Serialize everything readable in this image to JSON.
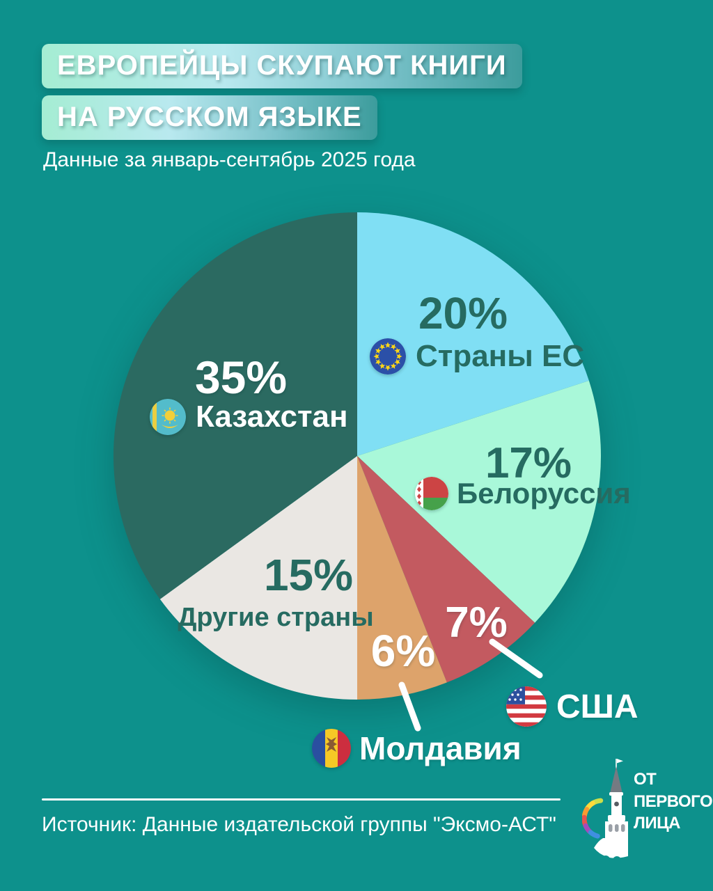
{
  "page": {
    "background_color": "#0d918c"
  },
  "header": {
    "title_line1": "ЕВРОПЕЙЦЫ СКУПАЮТ КНИГИ",
    "title_line2": "НА РУССКОМ ЯЗЫКЕ",
    "subtitle": "Данные за январь-сентябрь 2025 года"
  },
  "footer": {
    "source": "Источник: Данные издательской группы \"Эксмо-АСТ\"",
    "logo": {
      "line1": "ОТ",
      "line2": "ПЕРВОГО",
      "line3": "ЛИЦА"
    }
  },
  "chart_data": {
    "type": "pie",
    "title": "Европейцы скупают книги на русском языке",
    "period_label": "Данные за январь-сентябрь 2025 года",
    "unit": "percent",
    "start_angle_deg": 0,
    "direction": "clockwise",
    "label_color_dark": "#266b61",
    "label_color_light": "#ffffff",
    "slices": [
      {
        "label": "Страны ЕС",
        "value": 20,
        "pct_label": "20%",
        "color": "#80dff4",
        "flag_icon": "eu-flag"
      },
      {
        "label": "Белоруссия",
        "value": 17,
        "pct_label": "17%",
        "color": "#a9f8d9",
        "flag_icon": "belarus-flag"
      },
      {
        "label": "США",
        "value": 7,
        "pct_label": "7%",
        "color": "#c35a60",
        "flag_icon": "usa-flag"
      },
      {
        "label": "Молдавия",
        "value": 6,
        "pct_label": "6%",
        "color": "#dda36b",
        "flag_icon": "moldova-flag"
      },
      {
        "label": "Другие страны",
        "value": 15,
        "pct_label": "15%",
        "color": "#eae7e3",
        "flag_icon": null
      },
      {
        "label": "Казахстан",
        "value": 35,
        "pct_label": "35%",
        "color": "#2b6a61",
        "flag_icon": "kazakhstan-flag"
      }
    ]
  }
}
